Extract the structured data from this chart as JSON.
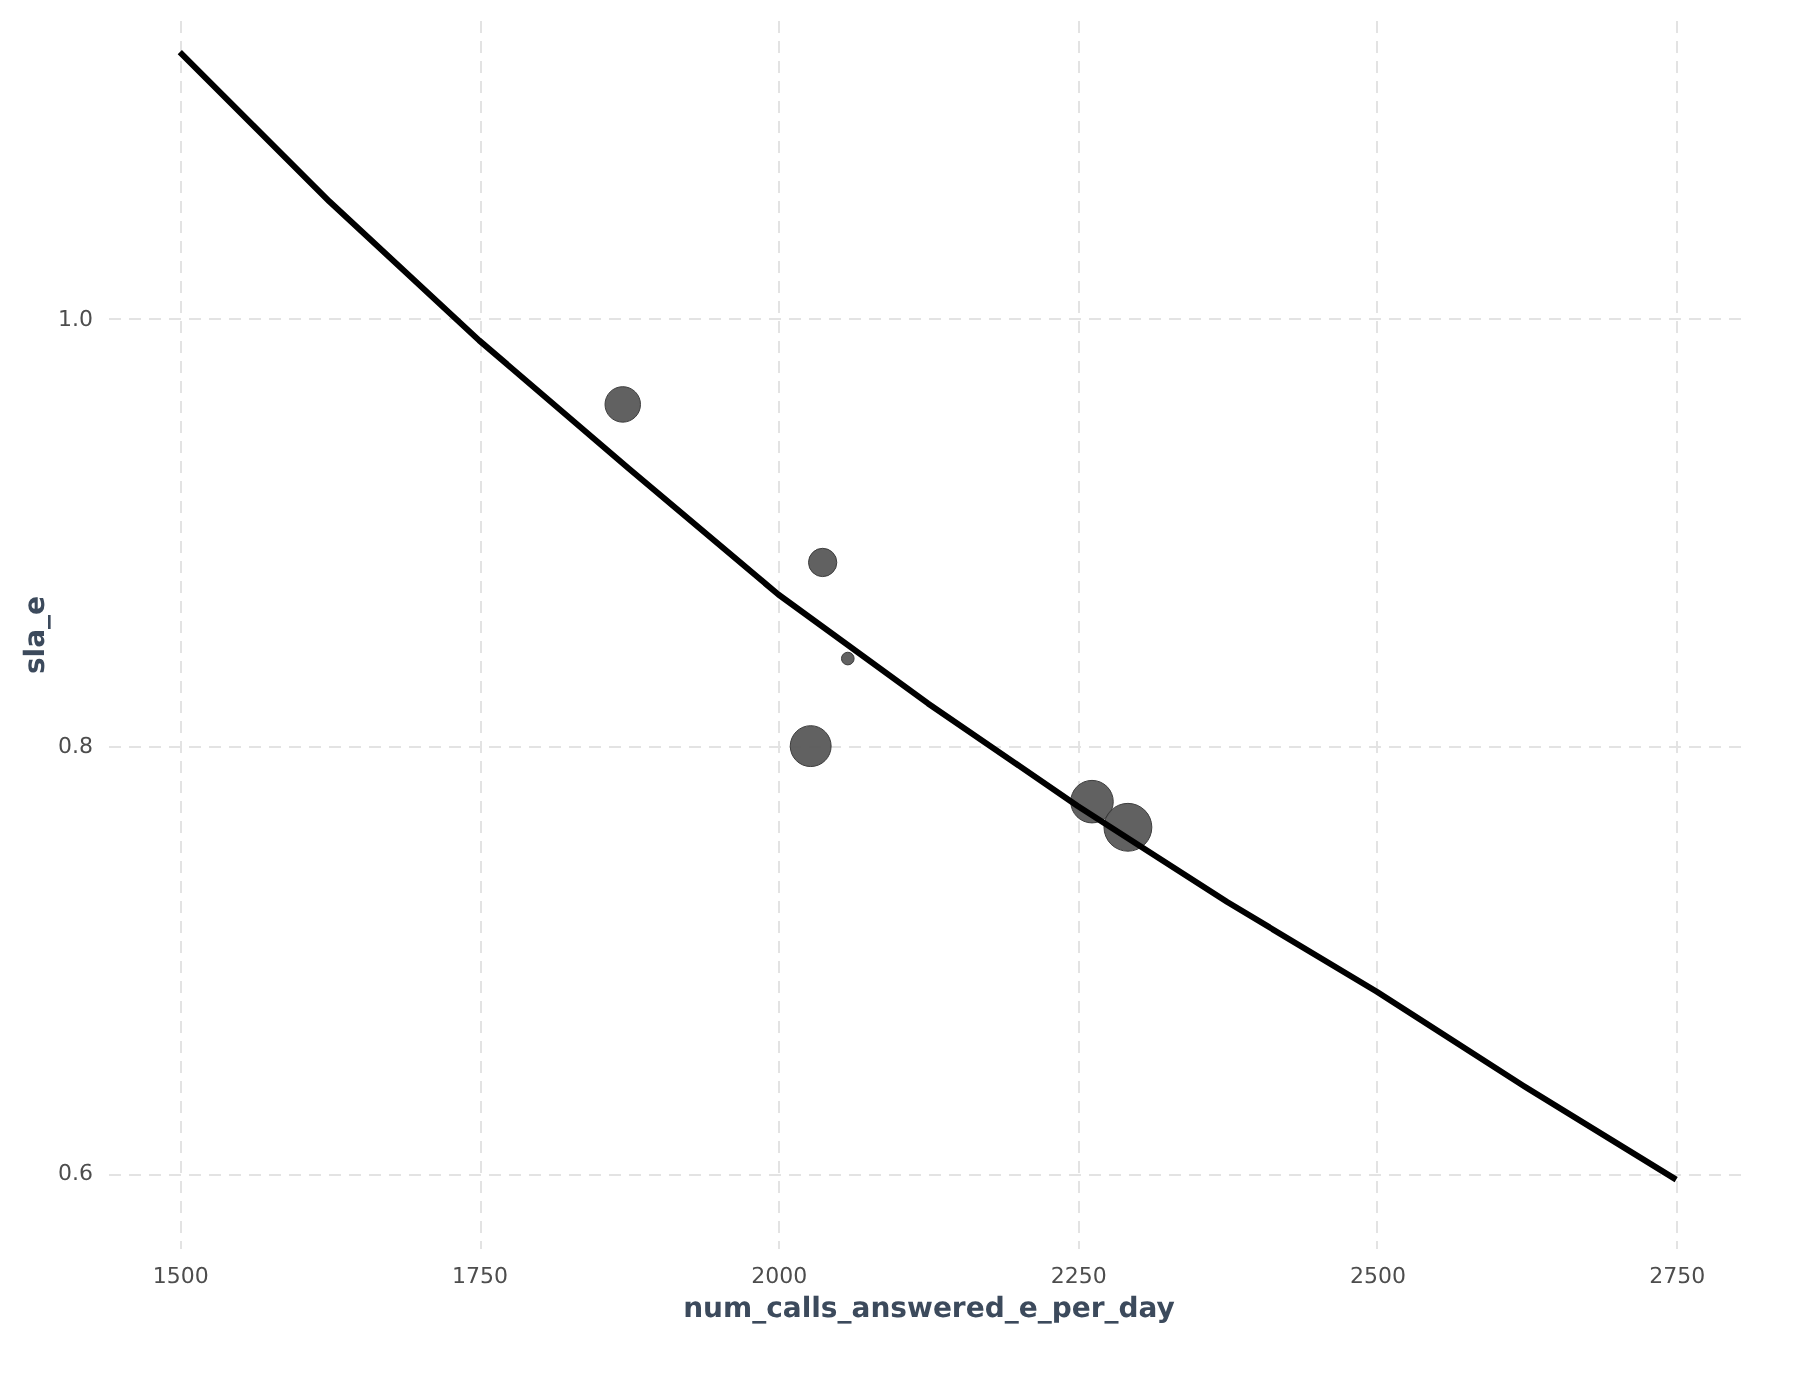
{
  "chart_data": {
    "type": "bubble",
    "xlabel": "num_calls_answered_e_per_day",
    "ylabel": "sla_e",
    "xlim": [
      1440,
      2810
    ],
    "ylim": [
      0.565,
      1.14
    ],
    "xticks": [
      1500,
      1750,
      2000,
      2250,
      2500,
      2750
    ],
    "yticks": [
      0.6,
      0.8,
      {
        "value": 1.0,
        "label": "1.0"
      }
    ],
    "grid": true,
    "series": [
      {
        "color": "#595959",
        "x": [
          1870,
          2037,
          2058,
          2027,
          2262,
          2292
        ],
        "values": [
          0.96,
          0.886,
          0.841,
          0.8,
          0.774,
          0.762
        ],
        "sizes": [
          0.55,
          0.35,
          0.07,
          0.73,
          0.79,
          1
        ]
      },
      {
        "type": "line",
        "color": "#000000",
        "x": [
          1500,
          1625,
          1750,
          1875,
          2000,
          2125,
          2250,
          2375,
          2500,
          2625,
          2750
        ],
        "values": [
          1.125,
          1.055,
          0.99,
          0.93,
          0.871,
          0.82,
          0.772,
          0.727,
          0.685,
          0.64,
          0.597
        ]
      }
    ]
  }
}
